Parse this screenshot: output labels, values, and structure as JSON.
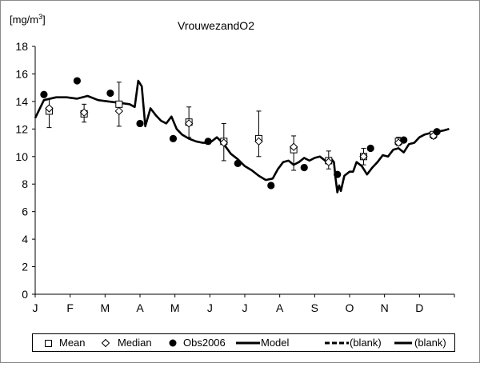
{
  "chart_data": {
    "type": "line",
    "title": "VrouwezandO2",
    "ylabel": "[mg/m³]",
    "ylabel_parts": {
      "base": "[mg/m",
      "sup": "3",
      "close": "]"
    },
    "xlabel": "",
    "ylim": [
      0,
      18
    ],
    "yticks": [
      0,
      2,
      4,
      6,
      8,
      10,
      12,
      14,
      16,
      18
    ],
    "xlim": [
      0,
      12
    ],
    "categories": [
      "J",
      "F",
      "M",
      "A",
      "M",
      "J",
      "J",
      "A",
      "S",
      "O",
      "N",
      "D"
    ],
    "legend": [
      {
        "name": "Mean",
        "marker": "square"
      },
      {
        "name": "Median",
        "marker": "diamond"
      },
      {
        "name": "Obs2006",
        "marker": "dot"
      },
      {
        "name": "Model",
        "marker": "line"
      },
      {
        "name": "(blank)",
        "marker": "dashed"
      },
      {
        "name": "(blank)",
        "marker": "thick-line"
      }
    ],
    "legend_position": "bottom",
    "series": {
      "model": {
        "name": "Model",
        "x": [
          0,
          0.25,
          0.6,
          0.9,
          1.2,
          1.5,
          1.8,
          2.1,
          2.4,
          2.7,
          2.85,
          2.95,
          3.05,
          3.15,
          3.3,
          3.45,
          3.6,
          3.75,
          3.9,
          4.05,
          4.2,
          4.4,
          4.6,
          4.8,
          5.0,
          5.2,
          5.4,
          5.6,
          5.8,
          6.0,
          6.2,
          6.4,
          6.6,
          6.8,
          6.95,
          7.1,
          7.25,
          7.4,
          7.55,
          7.7,
          7.85,
          8.0,
          8.15,
          8.3,
          8.45,
          8.55,
          8.6,
          8.65,
          8.7,
          8.75,
          8.85,
          9.0,
          9.1,
          9.2,
          9.35,
          9.5,
          9.65,
          9.8,
          9.95,
          10.1,
          10.25,
          10.4,
          10.55,
          10.7,
          10.85,
          11.0,
          11.15,
          11.3,
          11.5,
          11.7,
          11.85
        ],
        "y": [
          12.8,
          14.1,
          14.3,
          14.3,
          14.2,
          14.4,
          14.1,
          14.0,
          13.9,
          13.8,
          13.6,
          15.5,
          15.1,
          12.2,
          13.5,
          13.0,
          12.6,
          12.4,
          12.9,
          12.0,
          11.6,
          11.3,
          11.1,
          11.0,
          11.0,
          11.4,
          10.9,
          10.2,
          9.8,
          9.3,
          9.0,
          8.6,
          8.3,
          8.4,
          9.1,
          9.6,
          9.7,
          9.4,
          9.6,
          9.9,
          9.7,
          9.9,
          10.0,
          9.7,
          9.9,
          9.6,
          8.4,
          7.4,
          7.9,
          7.5,
          8.6,
          8.9,
          8.9,
          9.6,
          9.3,
          8.7,
          9.2,
          9.6,
          10.1,
          10.0,
          10.5,
          10.6,
          10.3,
          10.9,
          11.0,
          11.4,
          11.6,
          11.7,
          11.8,
          11.9,
          12.0
        ]
      },
      "mean": {
        "name": "Mean",
        "x": [
          0.4,
          1.4,
          2.4,
          4.4,
          5.4,
          6.4,
          7.4,
          8.4,
          9.4,
          10.4,
          11.4
        ],
        "y": [
          13.3,
          13.1,
          13.8,
          12.5,
          11.1,
          11.3,
          10.5,
          9.7,
          10.0,
          11.1,
          11.6
        ],
        "y_low": [
          12.1,
          12.5,
          12.2,
          11.4,
          9.7,
          10.0,
          9.0,
          9.1,
          9.4,
          10.8,
          11.3
        ],
        "y_high": [
          14.2,
          13.8,
          15.4,
          13.6,
          12.4,
          13.3,
          11.5,
          10.4,
          10.6,
          11.4,
          11.8
        ]
      },
      "median": {
        "name": "Median",
        "x": [
          0.4,
          1.4,
          2.4,
          4.4,
          5.4,
          6.4,
          7.4,
          8.4,
          9.4,
          10.4,
          11.4
        ],
        "y": [
          13.5,
          13.2,
          13.3,
          12.4,
          11.0,
          11.1,
          10.7,
          9.6,
          10.0,
          11.0,
          11.5
        ]
      },
      "obs2006": {
        "name": "Obs2006",
        "x": [
          0.25,
          1.2,
          2.15,
          3.0,
          3.95,
          4.95,
          5.8,
          6.75,
          7.7,
          8.65,
          9.6,
          10.55,
          11.5
        ],
        "y": [
          14.5,
          15.5,
          14.6,
          12.4,
          11.3,
          11.1,
          9.5,
          7.9,
          9.2,
          8.7,
          10.6,
          11.2,
          11.8
        ]
      }
    }
  }
}
